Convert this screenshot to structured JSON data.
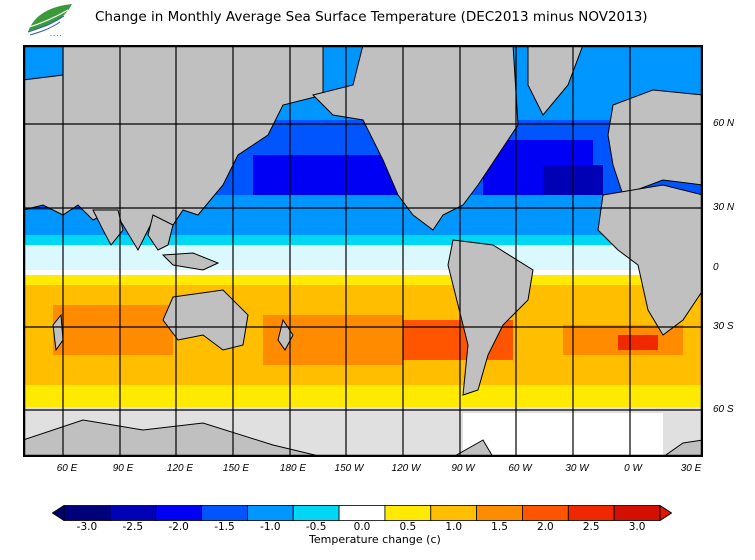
{
  "title": "Change in Monthly Average Sea Surface Temperature (DEC2013 minus NOV2013)",
  "logo": {
    "name": "leaf-logo",
    "text": "HKO"
  },
  "map": {
    "projection": "cylindrical",
    "land_color": "#c0c0c0",
    "ice_color": "#e0e0e0",
    "lat_labels": [
      "60 N",
      "30 N",
      "0",
      "30 S",
      "60 S"
    ],
    "lon_labels": [
      "60 E",
      "90 E",
      "120 E",
      "150 E",
      "180 E",
      "150 W",
      "120 W",
      "90 W",
      "60 W",
      "30 W",
      "0 W",
      "30 E"
    ]
  },
  "colorbar": {
    "label": "Temperature change  (c)",
    "ticks": [
      "-3.0",
      "-2.5",
      "-2.0",
      "-1.5",
      "-1.0",
      "-0.5",
      "0.0",
      "0.5",
      "1.0",
      "1.5",
      "2.0",
      "2.5",
      "3.0"
    ],
    "colors": [
      "#00007a",
      "#0000b4",
      "#0000f5",
      "#0055ff",
      "#0096ff",
      "#00d7f5",
      "#ffffff",
      "#ffea00",
      "#ffbe00",
      "#ff8c00",
      "#ff5500",
      "#f02800",
      "#d20f00"
    ],
    "under_color": "#00006a",
    "over_color": "#e61400"
  }
}
